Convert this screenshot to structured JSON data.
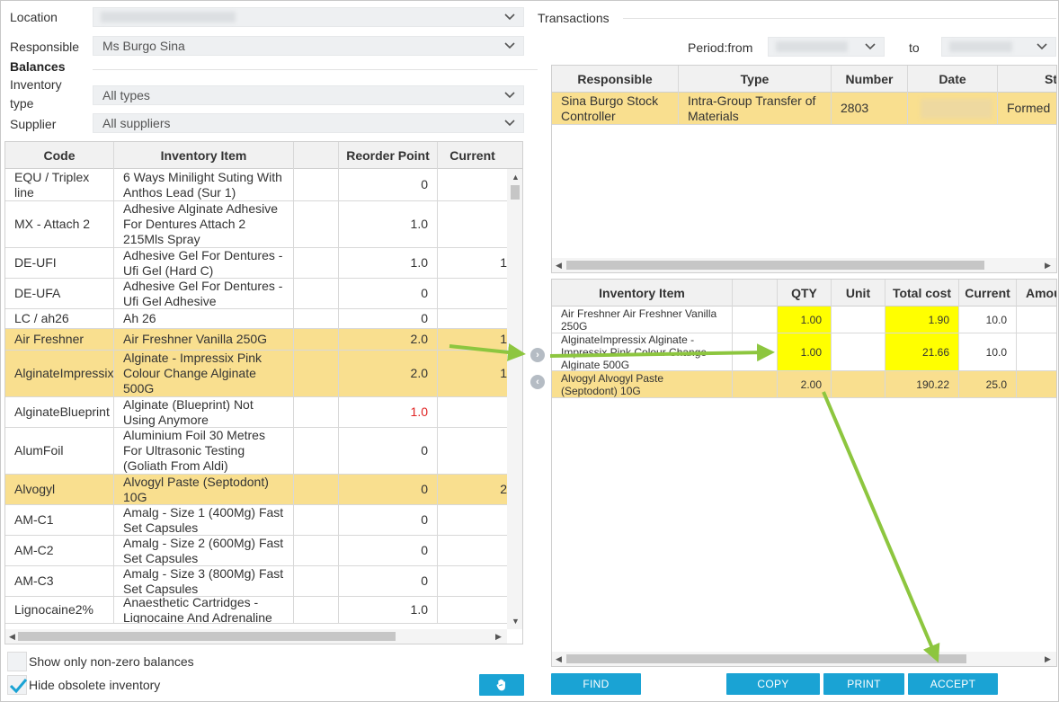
{
  "filters": {
    "location_label": "Location",
    "responsible_label": "Responsible",
    "responsible_value": "Ms Burgo Sina",
    "balances_label": "Balances",
    "inventory_type_label_1": "Inventory",
    "inventory_type_label_2": "type",
    "inventory_type_value": "All types",
    "supplier_label": "Supplier",
    "supplier_value": "All suppliers"
  },
  "left_table": {
    "headers": [
      "Code",
      "Inventory Item",
      "",
      "Reorder Point",
      "Current"
    ],
    "rows": [
      {
        "code": "EQU / Triplex line",
        "item": "6 Ways Minilight Suting With Anthos Lead (Sur 1)",
        "reorder": "0",
        "current": ""
      },
      {
        "code": "MX - Attach 2",
        "item": "Adhesive Alginate Adhesive For Dentures Attach 2 215Mls Spray",
        "reorder": "1.0",
        "current": ""
      },
      {
        "code": "DE-UFI",
        "item": "Adhesive Gel For Dentures - Ufi Gel (Hard C)",
        "reorder": "1.0",
        "current": "1"
      },
      {
        "code": "DE-UFA",
        "item": "Adhesive Gel For Dentures - Ufi Gel Adhesive",
        "reorder": "0",
        "current": ""
      },
      {
        "code": "LC / ah26",
        "item": "Ah 26",
        "reorder": "0",
        "current": ""
      },
      {
        "code": "Air Freshner",
        "item": "Air Freshner Vanilla 250G",
        "reorder": "2.0",
        "current": "1"
      },
      {
        "code": "AlginateImpressix",
        "item": "Alginate - Impressix Pink Colour Change Alginate 500G",
        "reorder": "2.0",
        "current": "1"
      },
      {
        "code": "AlginateBlueprint",
        "item": "Alginate (Blueprint) Not Using Anymore",
        "reorder": "1.0",
        "current": ""
      },
      {
        "code": "AlumFoil",
        "item": "Aluminium Foil 30 Metres For Ultrasonic Testing (Goliath From Aldi)",
        "reorder": "0",
        "current": ""
      },
      {
        "code": "Alvogyl",
        "item": "Alvogyl Paste (Septodont) 10G",
        "reorder": "0",
        "current": "2"
      },
      {
        "code": "AM-C1",
        "item": "Amalg - Size 1 (400Mg) Fast Set Capsules",
        "reorder": "0",
        "current": ""
      },
      {
        "code": "AM-C2",
        "item": "Amalg - Size 2 (600Mg) Fast Set Capsules",
        "reorder": "0",
        "current": ""
      },
      {
        "code": "AM-C3",
        "item": "Amalg - Size 3 (800Mg) Fast Set Capsules",
        "reorder": "0",
        "current": ""
      },
      {
        "code": "Lignocaine2%",
        "item": "Anaesthetic Cartridges - Lignocaine And Adrenaline",
        "reorder": "1.0",
        "current": ""
      }
    ]
  },
  "options": {
    "show_nonzero_label": "Show only non-zero balances",
    "hide_obsolete_label": "Hide obsolete inventory",
    "hide_obsolete_checked": true
  },
  "transactions": {
    "title": "Transactions",
    "period_from_label": "Period:from",
    "to_label": "to",
    "headers": [
      "Responsible",
      "Type",
      "Number",
      "Date",
      "St"
    ],
    "rows": [
      {
        "responsible": "Sina Burgo Stock Controller",
        "type": "Intra-Group Transfer of Materials",
        "number": "2803",
        "date": "",
        "status": "Formed"
      }
    ]
  },
  "detail": {
    "headers": [
      "Inventory Item",
      "",
      "QTY",
      "Unit",
      "Total cost",
      "Current",
      "Amou"
    ],
    "rows": [
      {
        "item": "Air Freshner Air Freshner Vanilla 250G",
        "qty": "1.00",
        "unit": "",
        "total": "1.90",
        "current": "10.0"
      },
      {
        "item": "AlginateImpressix Alginate - Impressix Pink Colour Change Alginate 500G",
        "qty": "1.00",
        "unit": "",
        "total": "21.66",
        "current": "10.0"
      },
      {
        "item": "Alvogyl Alvogyl Paste (Septodont) 10G",
        "qty": "2.00",
        "unit": "",
        "total": "190.22",
        "current": "25.0"
      }
    ]
  },
  "buttons": {
    "find": "FIND",
    "copy": "COPY",
    "print": "PRINT",
    "accept": "ACCEPT"
  },
  "colors": {
    "accent": "#1aa3d4",
    "selected_row": "#f9df8f",
    "highlight_cell": "#ffff00",
    "annotation_arrow": "#8dc63f",
    "negative_value": "#e02424"
  }
}
